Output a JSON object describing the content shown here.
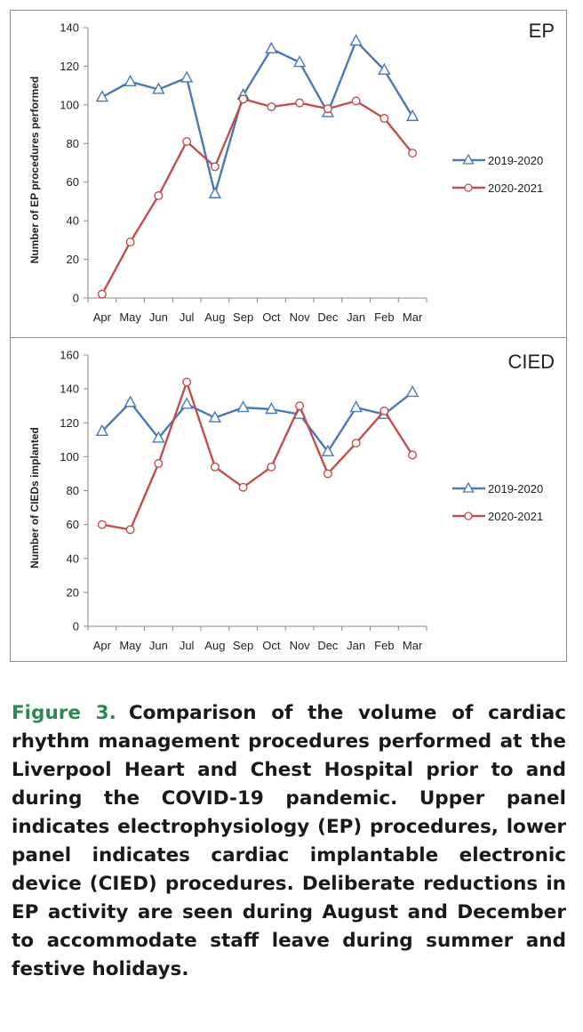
{
  "colors": {
    "series_2019": "#4a7ab5",
    "series_2020": "#c0504d",
    "caption_label": "#2d8a55"
  },
  "caption": {
    "label": "Figure 3.",
    "text": "Comparison of the volume of cardiac rhythm management procedures performed at the Liverpool Heart and Chest Hospital prior to and during the COVID-19 pandemic. Upper panel indicates electrophysiology (EP) procedures, lower panel indicates cardiac implantable electronic device (CIED) procedures. Deliberate reductions in EP activity are seen during August and December to accommodate staff leave during summer and festive holidays."
  },
  "chart_data": [
    {
      "type": "line",
      "title": "EP",
      "ylabel": "Number of EP procedures  performed",
      "xlabel": "",
      "categories": [
        "Apr",
        "May",
        "Jun",
        "Jul",
        "Aug",
        "Sep",
        "Oct",
        "Nov",
        "Dec",
        "Jan",
        "Feb",
        "Mar"
      ],
      "ylim": [
        0,
        140
      ],
      "yticks": [
        0,
        20,
        40,
        60,
        80,
        100,
        120,
        140
      ],
      "grid": false,
      "legend_position": "right",
      "series": [
        {
          "name": "2019-2020",
          "marker": "triangle",
          "values": [
            104,
            112,
            108,
            114,
            54,
            105,
            129,
            122,
            96,
            133,
            118,
            94
          ]
        },
        {
          "name": "2020-2021",
          "marker": "circle",
          "values": [
            2,
            29,
            53,
            81,
            68,
            103,
            99,
            101,
            98,
            102,
            93,
            75
          ]
        }
      ]
    },
    {
      "type": "line",
      "title": "CIED",
      "ylabel": "Number of CIEDs implanted",
      "xlabel": "",
      "categories": [
        "Apr",
        "May",
        "Jun",
        "Jul",
        "Aug",
        "Sep",
        "Oct",
        "Nov",
        "Dec",
        "Jan",
        "Feb",
        "Mar"
      ],
      "ylim": [
        0,
        160
      ],
      "yticks": [
        0,
        20,
        40,
        60,
        80,
        100,
        120,
        140,
        160
      ],
      "grid": false,
      "legend_position": "right",
      "series": [
        {
          "name": "2019-2020",
          "marker": "triangle",
          "values": [
            115,
            132,
            111,
            131,
            123,
            129,
            128,
            125,
            103,
            129,
            125,
            138
          ]
        },
        {
          "name": "2020-2021",
          "marker": "circle",
          "values": [
            60,
            57,
            96,
            144,
            94,
            82,
            94,
            130,
            90,
            108,
            127,
            101
          ]
        }
      ]
    }
  ]
}
